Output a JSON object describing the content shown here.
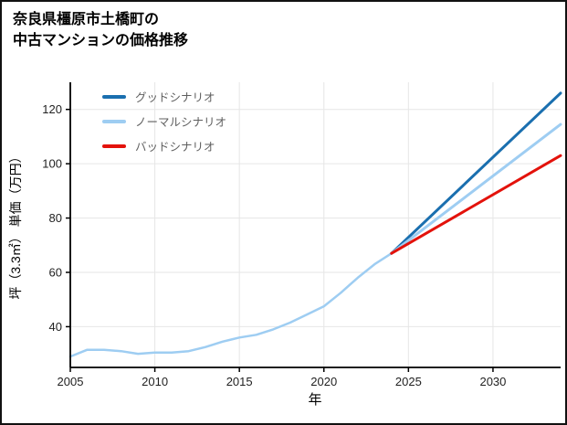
{
  "chart_data": {
    "type": "line",
    "title": "奈良県橿原市土橋町の中古マンションの価格推移",
    "title_lines": [
      "奈良県橿原市土橋町の",
      "中古マンションの価格推移"
    ],
    "xlabel": "年",
    "ylabel": "坪（3.3㎡） 単価（万円）",
    "xlim": [
      2005,
      2034
    ],
    "ylim": [
      25,
      130
    ],
    "xticks": [
      2005,
      2010,
      2015,
      2020,
      2025,
      2030
    ],
    "yticks": [
      40,
      60,
      80,
      100,
      120
    ],
    "grid": true,
    "legend_position": "upper-left",
    "colors": {
      "grid": "#e6e6e6",
      "axis": "#000000",
      "tick_label": "#222222",
      "legend_text": "#5f5f5f"
    },
    "series": [
      {
        "id": "history",
        "name": "",
        "legend": false,
        "color": "#9ecdf2",
        "width": 2.5,
        "x": [
          2005,
          2006,
          2007,
          2008,
          2009,
          2010,
          2011,
          2012,
          2013,
          2014,
          2015,
          2016,
          2017,
          2018,
          2019,
          2020,
          2021,
          2022,
          2023,
          2024
        ],
        "y": [
          29,
          31.5,
          31.5,
          31,
          30,
          30.5,
          30.5,
          31,
          32.5,
          34.5,
          36,
          37,
          39,
          41.5,
          44.5,
          47.5,
          52.5,
          58,
          63,
          67
        ]
      },
      {
        "id": "good-scenario",
        "name": "グッドシナリオ",
        "legend": true,
        "color": "#1a6faf",
        "width": 3,
        "x": [
          2024,
          2034
        ],
        "y": [
          67,
          126
        ]
      },
      {
        "id": "normal-scenario",
        "name": "ノーマルシナリオ",
        "legend": true,
        "color": "#9ecdf2",
        "width": 3,
        "x": [
          2024,
          2034
        ],
        "y": [
          67,
          114.5
        ]
      },
      {
        "id": "bad-scenario",
        "name": "バッドシナリオ",
        "legend": true,
        "color": "#e3120b",
        "width": 3,
        "x": [
          2024,
          2034
        ],
        "y": [
          67,
          103
        ]
      }
    ]
  }
}
